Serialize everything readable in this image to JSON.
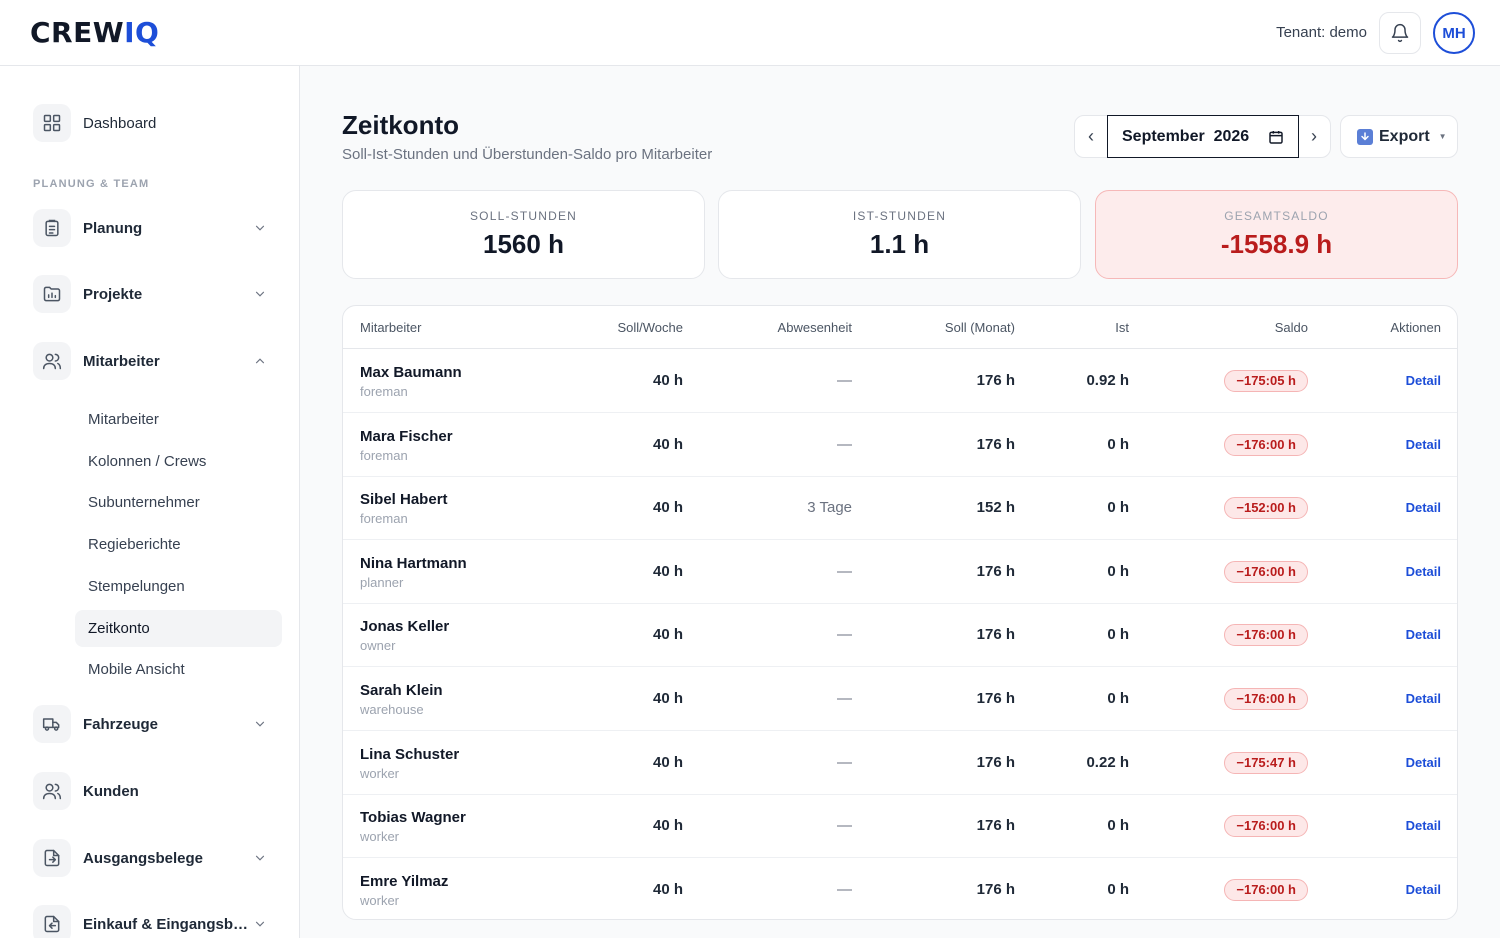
{
  "header": {
    "logo_main": "CREW",
    "logo_accent": "IQ",
    "tenant": "Tenant: demo",
    "avatar_initials": "MH"
  },
  "sidebar": {
    "dashboard": "Dashboard",
    "section_title": "PLANUNG & TEAM",
    "planung": "Planung",
    "projekte": "Projekte",
    "mitarbeiter": "Mitarbeiter",
    "sub": [
      "Mitarbeiter",
      "Kolonnen / Crews",
      "Subunternehmer",
      "Regieberichte",
      "Stempelungen",
      "Zeitkonto",
      "Mobile Ansicht"
    ],
    "fahrzeuge": "Fahrzeuge",
    "kunden": "Kunden",
    "ausgangsbelege": "Ausgangsbelege",
    "einkauf": "Einkauf & Eingangsbelege"
  },
  "main": {
    "title": "Zeitkonto",
    "subtitle": "Soll-Ist-Stunden und Überstunden-Saldo pro Mitarbeiter",
    "month": "September  2026",
    "prev": "‹",
    "next": "›",
    "export": "Export"
  },
  "stats": {
    "soll_label": "SOLL-STUNDEN",
    "soll_value": "1560 h",
    "ist_label": "IST-STUNDEN",
    "ist_value": "1.1 h",
    "saldo_label": "GESAMTSALDO",
    "saldo_value": "-1558.9 h"
  },
  "table": {
    "headers": {
      "mitarbeiter": "Mitarbeiter",
      "soll_woche": "Soll/Woche",
      "abwesenheit": "Abwesenheit",
      "soll_monat": "Soll (Monat)",
      "ist": "Ist",
      "saldo": "Saldo",
      "aktionen": "Aktionen"
    },
    "detail_label": "Detail",
    "rows": [
      {
        "name": "Max Baumann",
        "role": "foreman",
        "soll_woche": "40 h",
        "abwesenheit": "—",
        "soll_monat": "176 h",
        "ist": "0.92 h",
        "saldo": "−175:05 h"
      },
      {
        "name": "Mara Fischer",
        "role": "foreman",
        "soll_woche": "40 h",
        "abwesenheit": "—",
        "soll_monat": "176 h",
        "ist": "0 h",
        "saldo": "−176:00 h"
      },
      {
        "name": "Sibel Habert",
        "role": "foreman",
        "soll_woche": "40 h",
        "abwesenheit": "3 Tage",
        "soll_monat": "152 h",
        "ist": "0 h",
        "saldo": "−152:00 h"
      },
      {
        "name": "Nina Hartmann",
        "role": "planner",
        "soll_woche": "40 h",
        "abwesenheit": "—",
        "soll_monat": "176 h",
        "ist": "0 h",
        "saldo": "−176:00 h"
      },
      {
        "name": "Jonas Keller",
        "role": "owner",
        "soll_woche": "40 h",
        "abwesenheit": "—",
        "soll_monat": "176 h",
        "ist": "0 h",
        "saldo": "−176:00 h"
      },
      {
        "name": "Sarah Klein",
        "role": "warehouse",
        "soll_woche": "40 h",
        "abwesenheit": "—",
        "soll_monat": "176 h",
        "ist": "0 h",
        "saldo": "−176:00 h"
      },
      {
        "name": "Lina Schuster",
        "role": "worker",
        "soll_woche": "40 h",
        "abwesenheit": "—",
        "soll_monat": "176 h",
        "ist": "0.22 h",
        "saldo": "−175:47 h"
      },
      {
        "name": "Tobias Wagner",
        "role": "worker",
        "soll_woche": "40 h",
        "abwesenheit": "—",
        "soll_monat": "176 h",
        "ist": "0 h",
        "saldo": "−176:00 h"
      },
      {
        "name": "Emre Yilmaz",
        "role": "worker",
        "soll_woche": "40 h",
        "abwesenheit": "—",
        "soll_monat": "176 h",
        "ist": "0 h",
        "saldo": "−176:00 h"
      }
    ]
  }
}
